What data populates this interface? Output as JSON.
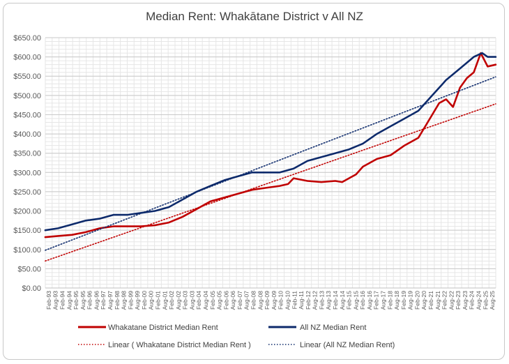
{
  "chart_data": {
    "type": "line",
    "title": "Median Rent: Whakātane District v All NZ",
    "xlabel": "",
    "ylabel": "",
    "ylim": [
      0,
      650
    ],
    "xlim": [
      1993.083,
      2025.583
    ],
    "y_ticks": [
      0,
      50,
      100,
      150,
      200,
      250,
      300,
      350,
      400,
      450,
      500,
      550,
      600,
      650
    ],
    "y_tick_labels": [
      "$0.00",
      "$50.00",
      "$100.00",
      "$150.00",
      "$200.00",
      "$250.00",
      "$300.00",
      "$350.00",
      "$400.00",
      "$450.00",
      "$500.00",
      "$550.00",
      "$600.00",
      "$650.00"
    ],
    "x_tick_labels": [
      "Feb-93",
      "Aug-93",
      "Feb-94",
      "Aug-94",
      "Feb-95",
      "Aug-95",
      "Feb-96",
      "Aug-96",
      "Feb-97",
      "Aug-97",
      "Feb-98",
      "Aug-98",
      "Feb-99",
      "Aug-99",
      "Feb-00",
      "Aug-00",
      "Feb-01",
      "Aug-01",
      "Feb-02",
      "Aug-02",
      "Feb-03",
      "Aug-03",
      "Feb-04",
      "Aug-04",
      "Feb-05",
      "Aug-05",
      "Feb-06",
      "Aug-06",
      "Feb-07",
      "Aug-07",
      "Feb-08",
      "Aug-08",
      "Feb-09",
      "Aug-09",
      "Feb-10",
      "Aug-10",
      "Feb-11",
      "Aug-11",
      "Feb-12",
      "Aug-12",
      "Feb-13",
      "Aug-13",
      "Feb-14",
      "Aug-14",
      "Feb-15",
      "Aug-15",
      "Feb-16",
      "Aug-16",
      "Feb-17",
      "Aug-17",
      "Feb-18",
      "Aug-18",
      "Feb-19",
      "Aug-19",
      "Feb-20",
      "Aug-20",
      "Feb-21",
      "Aug-21",
      "Feb-22",
      "Aug-22",
      "Feb-23",
      "Aug-23",
      "Feb-24",
      "Aug-24",
      "Feb-25",
      "Aug-25"
    ],
    "grid": true,
    "legend_position": "bottom",
    "series": [
      {
        "name": "Whakatane District Median Rent",
        "color": "#c00000",
        "style": "solid",
        "x": [
          1993.08,
          1994.0,
          1995.0,
          1996.0,
          1997.0,
          1998.0,
          1999.0,
          2000.0,
          2001.0,
          2002.0,
          2003.0,
          2004.0,
          2005.0,
          2006.0,
          2007.0,
          2008.0,
          2009.0,
          2010.0,
          2010.6,
          2011.0,
          2012.0,
          2013.0,
          2014.0,
          2014.5,
          2015.0,
          2015.5,
          2016.0,
          2017.0,
          2018.0,
          2019.0,
          2020.0,
          2020.5,
          2021.0,
          2021.5,
          2022.0,
          2022.5,
          2023.0,
          2023.5,
          2024.0,
          2024.5,
          2025.0,
          2025.58
        ],
        "y": [
          132,
          135,
          138,
          145,
          155,
          160,
          160,
          160,
          163,
          170,
          185,
          205,
          225,
          235,
          245,
          255,
          260,
          265,
          270,
          285,
          278,
          275,
          278,
          275,
          285,
          295,
          315,
          335,
          345,
          370,
          390,
          420,
          450,
          480,
          490,
          470,
          520,
          545,
          560,
          610,
          575,
          580
        ]
      },
      {
        "name": "All NZ Median Rent",
        "color": "#0d2a6b",
        "style": "solid",
        "x": [
          1993.08,
          1994.0,
          1995.0,
          1996.0,
          1997.0,
          1998.0,
          1999.0,
          2000.0,
          2001.0,
          2002.0,
          2003.0,
          2004.0,
          2005.0,
          2006.0,
          2007.0,
          2008.0,
          2009.0,
          2010.0,
          2011.0,
          2012.0,
          2013.0,
          2014.0,
          2015.0,
          2016.0,
          2017.0,
          2018.0,
          2019.0,
          2020.0,
          2021.0,
          2022.0,
          2023.0,
          2024.0,
          2024.6,
          2025.0,
          2025.58
        ],
        "y": [
          150,
          155,
          165,
          175,
          180,
          190,
          190,
          195,
          200,
          210,
          230,
          250,
          265,
          280,
          290,
          300,
          300,
          300,
          310,
          330,
          340,
          350,
          360,
          375,
          400,
          420,
          440,
          460,
          500,
          540,
          570,
          600,
          610,
          600,
          600
        ]
      },
      {
        "name": "Linear ( Whakatane District Median Rent )",
        "color": "#c00000",
        "style": "dotted",
        "x": [
          1993.08,
          2025.58
        ],
        "y": [
          70,
          478
        ]
      },
      {
        "name": "Linear (All NZ Median Rent)",
        "color": "#0d2a6b",
        "style": "dotted",
        "x": [
          1993.08,
          2025.58
        ],
        "y": [
          98,
          548
        ]
      }
    ]
  }
}
